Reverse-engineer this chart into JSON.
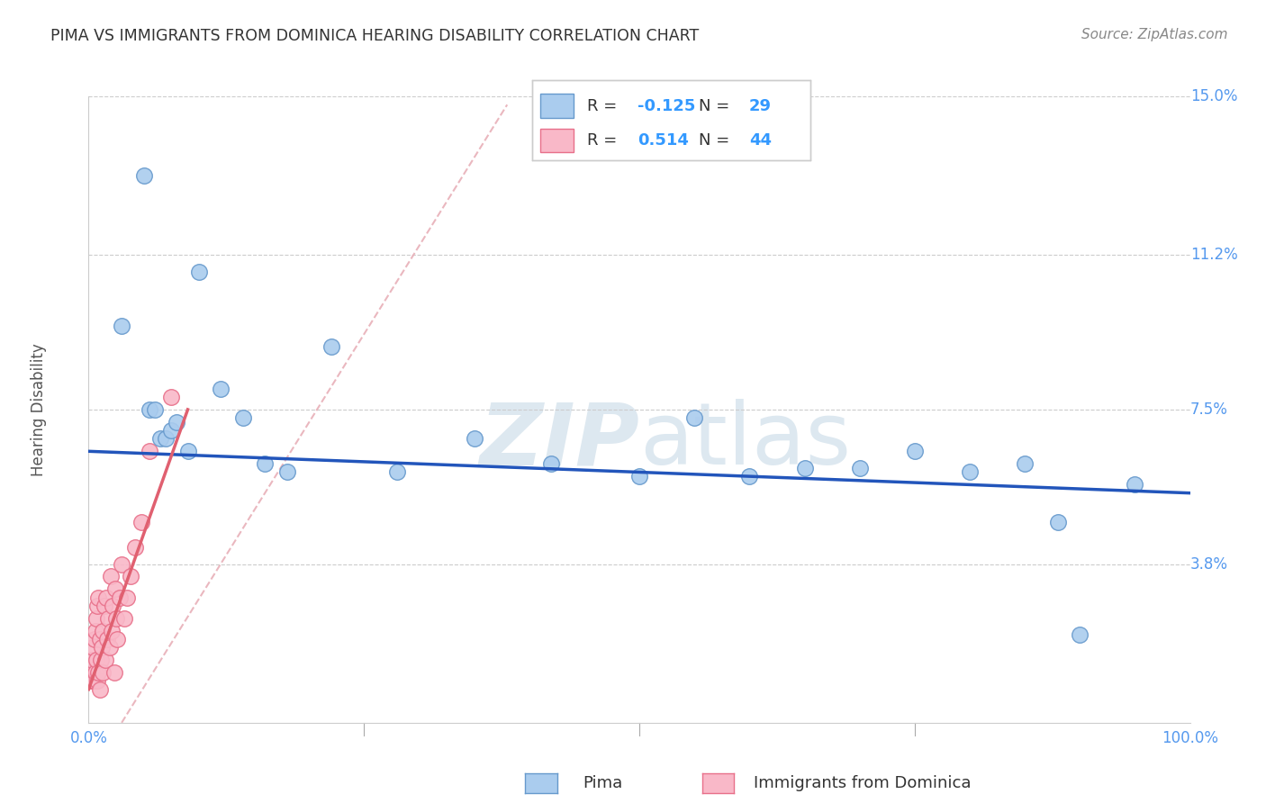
{
  "title": "PIMA VS IMMIGRANTS FROM DOMINICA HEARING DISABILITY CORRELATION CHART",
  "source": "Source: ZipAtlas.com",
  "ylabel": "Hearing Disability",
  "xlim": [
    0.0,
    1.0
  ],
  "ylim": [
    0.0,
    0.15
  ],
  "ytick_positions": [
    0.038,
    0.075,
    0.112,
    0.15
  ],
  "ytick_labels": [
    "3.8%",
    "7.5%",
    "11.2%",
    "15.0%"
  ],
  "xtick_positions": [
    0.0,
    1.0
  ],
  "xtick_labels": [
    "0.0%",
    "100.0%"
  ],
  "background_color": "#ffffff",
  "grid_color": "#cccccc",
  "pima_color": "#aaccee",
  "dominica_color": "#f9b8c8",
  "pima_edge_color": "#6699cc",
  "dominica_edge_color": "#e8708a",
  "title_color": "#333333",
  "axis_label_color": "#5599ee",
  "watermark_color": "#dde8f0",
  "regression_blue": "#2255bb",
  "regression_pink": "#e06070",
  "dashed_line_color": "#e8b0b8",
  "legend_text_color": "#333333",
  "legend_value_color": "#3399ff",
  "pima_R": "-0.125",
  "pima_N": "29",
  "dominica_R": "0.514",
  "dominica_N": "44",
  "pima_x": [
    0.03,
    0.05,
    0.055,
    0.06,
    0.065,
    0.07,
    0.075,
    0.08,
    0.09,
    0.1,
    0.12,
    0.14,
    0.16,
    0.18,
    0.22,
    0.28,
    0.35,
    0.42,
    0.5,
    0.55,
    0.6,
    0.65,
    0.7,
    0.75,
    0.8,
    0.85,
    0.88,
    0.9,
    0.95
  ],
  "pima_y": [
    0.095,
    0.131,
    0.075,
    0.075,
    0.068,
    0.068,
    0.07,
    0.072,
    0.065,
    0.108,
    0.08,
    0.073,
    0.062,
    0.06,
    0.09,
    0.06,
    0.068,
    0.062,
    0.059,
    0.073,
    0.059,
    0.061,
    0.061,
    0.065,
    0.06,
    0.062,
    0.048,
    0.021,
    0.057
  ],
  "dominica_x": [
    0.001,
    0.002,
    0.003,
    0.003,
    0.004,
    0.004,
    0.005,
    0.005,
    0.006,
    0.006,
    0.007,
    0.007,
    0.008,
    0.008,
    0.009,
    0.009,
    0.01,
    0.01,
    0.011,
    0.012,
    0.013,
    0.013,
    0.014,
    0.015,
    0.016,
    0.017,
    0.018,
    0.019,
    0.02,
    0.021,
    0.022,
    0.023,
    0.024,
    0.025,
    0.026,
    0.028,
    0.03,
    0.032,
    0.035,
    0.038,
    0.042,
    0.048,
    0.055,
    0.075
  ],
  "dominica_y": [
    0.01,
    0.01,
    0.012,
    0.015,
    0.01,
    0.018,
    0.01,
    0.02,
    0.012,
    0.022,
    0.015,
    0.025,
    0.01,
    0.028,
    0.012,
    0.03,
    0.008,
    0.02,
    0.015,
    0.018,
    0.022,
    0.012,
    0.028,
    0.015,
    0.03,
    0.02,
    0.025,
    0.018,
    0.035,
    0.022,
    0.028,
    0.012,
    0.032,
    0.025,
    0.02,
    0.03,
    0.038,
    0.025,
    0.03,
    0.035,
    0.042,
    0.048,
    0.065,
    0.078
  ]
}
